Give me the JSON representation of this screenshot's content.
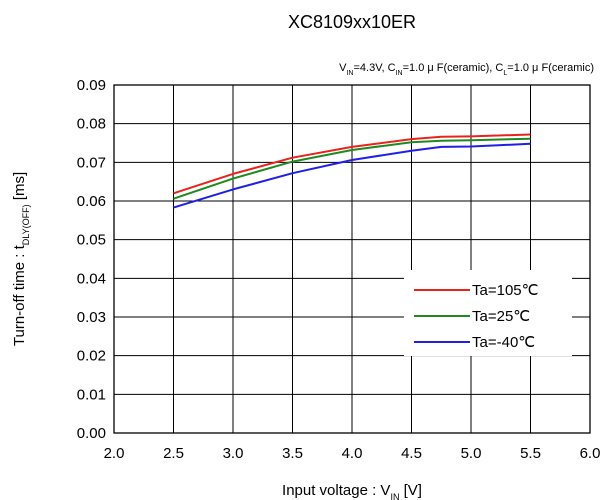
{
  "chart_data": {
    "type": "line",
    "title": "XC8109xx10ER",
    "conditions": {
      "vin": [
        "V",
        "IN",
        "=4.3V,  C"
      ],
      "cin": [
        "IN",
        "=1.0 μ F(ceramic),  C"
      ],
      "cl": [
        "L",
        "=1.0 μ F(ceramic)"
      ]
    },
    "xlabel": {
      "main": "Input voltage : V",
      "sub": "IN",
      "unit": " [V]"
    },
    "ylabel": {
      "main": "Turn-off time : t",
      "sub": "DLY(OFF)",
      "unit": " [ms]"
    },
    "xlim": [
      2.0,
      6.0
    ],
    "ylim": [
      0.0,
      0.09
    ],
    "x_ticks": [
      "2.0",
      "2.5",
      "3.0",
      "3.5",
      "4.0",
      "4.5",
      "5.0",
      "5.5",
      "6.0"
    ],
    "y_ticks": [
      "0.00",
      "0.01",
      "0.02",
      "0.03",
      "0.04",
      "0.05",
      "0.06",
      "0.07",
      "0.08",
      "0.09"
    ],
    "grid": true,
    "legend_position": "right",
    "series": [
      {
        "name": "Ta=105℃",
        "color": "#e8231d",
        "x": [
          2.5,
          3.0,
          3.5,
          4.0,
          4.5,
          4.75,
          5.0,
          5.5
        ],
        "values": [
          0.062,
          0.067,
          0.0712,
          0.074,
          0.076,
          0.0766,
          0.0767,
          0.0772
        ]
      },
      {
        "name": "Ta=25℃",
        "color": "#1f8a1f",
        "x": [
          2.5,
          3.0,
          3.5,
          4.0,
          4.5,
          4.75,
          5.0,
          5.5
        ],
        "values": [
          0.0606,
          0.0658,
          0.0702,
          0.0732,
          0.0752,
          0.0756,
          0.0757,
          0.0761
        ]
      },
      {
        "name": "Ta=-40℃",
        "color": "#1f1fe8",
        "x": [
          2.5,
          3.0,
          3.5,
          4.0,
          4.5,
          4.75,
          5.0,
          5.5
        ],
        "values": [
          0.0583,
          0.063,
          0.0672,
          0.0706,
          0.073,
          0.074,
          0.0741,
          0.0748
        ]
      }
    ]
  }
}
